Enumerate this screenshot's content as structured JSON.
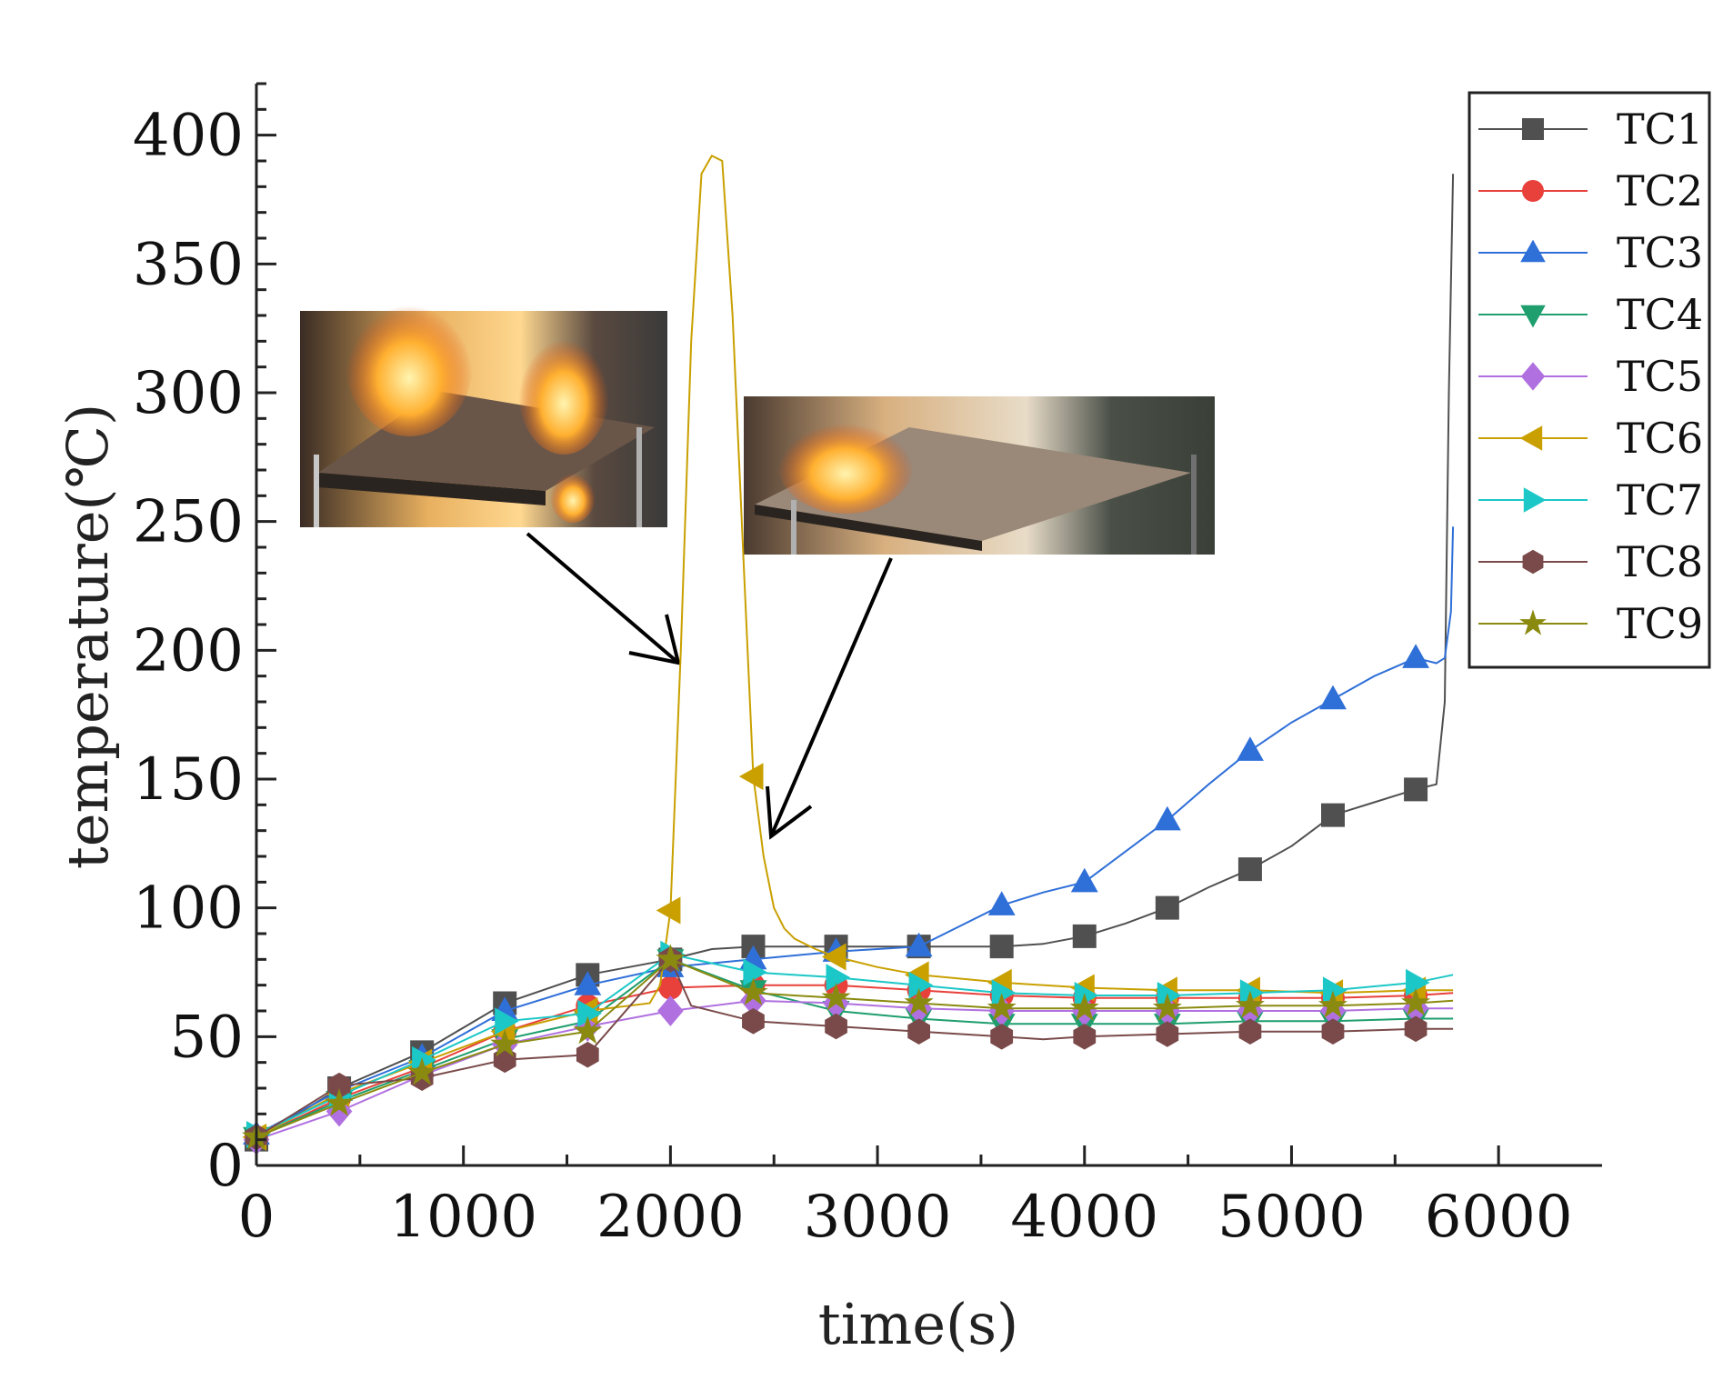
{
  "chart_data": {
    "type": "line",
    "title": "",
    "xlabel": "time(s)",
    "ylabel": "temperature(℃)",
    "xlim": [
      0,
      6500
    ],
    "ylim": [
      0,
      420
    ],
    "xticks": [
      0,
      1000,
      2000,
      3000,
      4000,
      5000,
      6000
    ],
    "yticks": [
      0,
      50,
      100,
      150,
      200,
      250,
      300,
      350,
      400
    ],
    "legend_position": "top-right",
    "grid": false,
    "marker_x": [
      0,
      400,
      800,
      1200,
      1600,
      2000,
      2400,
      2800,
      3200,
      3600,
      4000,
      4400,
      4800,
      5200,
      5600
    ],
    "series": [
      {
        "name": "TC1",
        "color": "#505050",
        "marker": "square",
        "x": [
          0,
          400,
          800,
          1200,
          1600,
          2000,
          2200,
          2400,
          2800,
          3200,
          3600,
          3800,
          4000,
          4200,
          4400,
          4600,
          4800,
          5000,
          5200,
          5400,
          5600,
          5700,
          5740,
          5760,
          5780
        ],
        "y": [
          10,
          30,
          44,
          63,
          74,
          80,
          84,
          85,
          85,
          85,
          85,
          86,
          89,
          94,
          100,
          108,
          115,
          124,
          136,
          141,
          146,
          148,
          180,
          300,
          385
        ]
      },
      {
        "name": "TC2",
        "color": "#e8403a",
        "marker": "circle",
        "x": [
          0,
          400,
          800,
          1200,
          1600,
          2000,
          2400,
          2800,
          3200,
          3600,
          4000,
          4400,
          4800,
          5200,
          5600,
          5780
        ],
        "y": [
          11,
          26,
          38,
          52,
          62,
          69,
          70,
          70,
          68,
          66,
          65,
          65,
          65,
          65,
          66,
          67
        ]
      },
      {
        "name": "TC3",
        "color": "#2f6fd8",
        "marker": "triangle-up",
        "x": [
          0,
          400,
          800,
          1200,
          1600,
          2000,
          2400,
          2800,
          3000,
          3200,
          3400,
          3600,
          3800,
          4000,
          4200,
          4400,
          4600,
          4800,
          5000,
          5200,
          5400,
          5600,
          5700,
          5740,
          5770,
          5780
        ],
        "y": [
          12,
          29,
          42,
          60,
          70,
          77,
          80,
          83,
          84,
          85,
          93,
          101,
          106,
          110,
          122,
          134,
          148,
          161,
          172,
          181,
          190,
          197,
          195,
          197,
          215,
          248
        ]
      },
      {
        "name": "TC4",
        "color": "#1f9e6e",
        "marker": "triangle-down",
        "x": [
          0,
          400,
          800,
          1200,
          1600,
          2000,
          2400,
          2800,
          3200,
          3600,
          4000,
          4400,
          4800,
          5200,
          5600,
          5780
        ],
        "y": [
          11,
          25,
          37,
          49,
          56,
          80,
          68,
          60,
          57,
          55,
          55,
          55,
          56,
          56,
          57,
          57
        ]
      },
      {
        "name": "TC5",
        "color": "#b070e0",
        "marker": "diamond",
        "x": [
          0,
          400,
          800,
          1200,
          1600,
          2000,
          2400,
          2800,
          3200,
          3600,
          4000,
          4400,
          4800,
          5200,
          5600,
          5780
        ],
        "y": [
          10,
          21,
          35,
          47,
          54,
          60,
          64,
          63,
          61,
          60,
          60,
          60,
          60,
          60,
          61,
          61
        ]
      },
      {
        "name": "TC6",
        "color": "#c9a000",
        "marker": "triangle-left",
        "x": [
          0,
          400,
          800,
          1200,
          1600,
          1900,
          1950,
          2000,
          2050,
          2100,
          2150,
          2200,
          2250,
          2300,
          2350,
          2400,
          2450,
          2500,
          2550,
          2600,
          2700,
          2800,
          3000,
          3200,
          3600,
          4000,
          4400,
          4800,
          5200,
          5600,
          5780
        ],
        "y": [
          11,
          28,
          40,
          52,
          60,
          63,
          70,
          99,
          200,
          320,
          385,
          392,
          390,
          330,
          240,
          151,
          120,
          100,
          92,
          88,
          84,
          81,
          77,
          74,
          71,
          69,
          68,
          68,
          67,
          68,
          68
        ]
      },
      {
        "name": "TC7",
        "color": "#1cc7c7",
        "marker": "triangle-right",
        "x": [
          0,
          400,
          800,
          1200,
          1600,
          2000,
          2400,
          2800,
          3200,
          3600,
          4000,
          4400,
          4800,
          5200,
          5600,
          5780
        ],
        "y": [
          12,
          27,
          41,
          56,
          59,
          82,
          75,
          73,
          70,
          67,
          66,
          66,
          67,
          68,
          71,
          74
        ]
      },
      {
        "name": "TC8",
        "color": "#7a4a4a",
        "marker": "hexagon",
        "x": [
          0,
          400,
          800,
          1200,
          1600,
          2000,
          2100,
          2400,
          2800,
          3200,
          3600,
          3800,
          4000,
          4400,
          4800,
          5200,
          5600,
          5780
        ],
        "y": [
          11,
          31,
          34,
          41,
          43,
          80,
          62,
          56,
          54,
          52,
          50,
          49,
          50,
          51,
          52,
          52,
          53,
          53
        ]
      },
      {
        "name": "TC9",
        "color": "#8a8a10",
        "marker": "star",
        "x": [
          0,
          400,
          800,
          1200,
          1600,
          2000,
          2400,
          2800,
          3200,
          3600,
          4000,
          4400,
          4800,
          5200,
          5600,
          5780
        ],
        "y": [
          11,
          24,
          36,
          47,
          52,
          80,
          67,
          65,
          63,
          61,
          61,
          61,
          62,
          62,
          63,
          64
        ]
      }
    ]
  }
}
